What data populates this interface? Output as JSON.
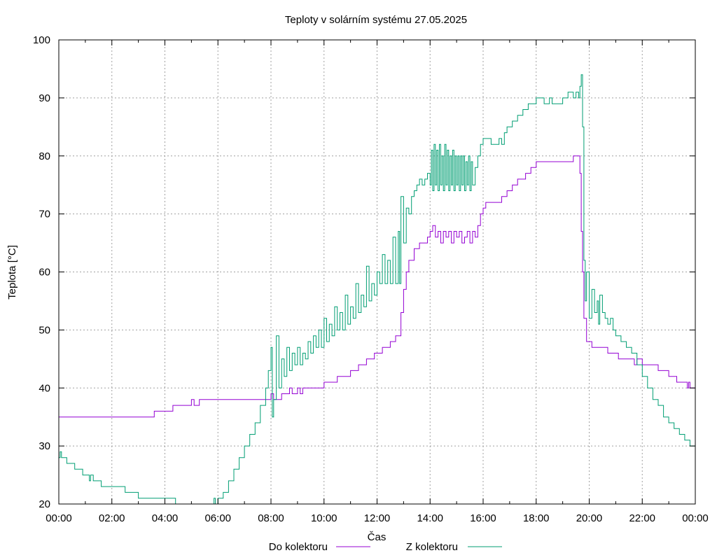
{
  "chart_data": {
    "type": "line",
    "title": "Teploty v solárním systému 27.05.2025",
    "xlabel": "Čas",
    "ylabel": "Teplota [°C]",
    "x_ticks": [
      "00:00",
      "02:00",
      "04:00",
      "06:00",
      "08:00",
      "10:00",
      "12:00",
      "14:00",
      "16:00",
      "18:00",
      "20:00",
      "22:00",
      "00:00"
    ],
    "y_ticks": [
      20,
      30,
      40,
      50,
      60,
      70,
      80,
      90,
      100
    ],
    "xlim_hours": [
      0,
      24
    ],
    "ylim": [
      20,
      100
    ],
    "grid": true,
    "legend_placement": "bottom",
    "series": [
      {
        "name": "Do kolektoru",
        "color": "#9400d3",
        "points": [
          [
            0.0,
            35
          ],
          [
            3.6,
            35
          ],
          [
            3.6,
            36
          ],
          [
            4.3,
            36
          ],
          [
            4.3,
            37
          ],
          [
            5.0,
            37
          ],
          [
            5.0,
            38
          ],
          [
            5.1,
            37
          ],
          [
            5.3,
            37
          ],
          [
            5.3,
            38
          ],
          [
            6.5,
            38
          ],
          [
            7.9,
            38
          ],
          [
            8.0,
            39
          ],
          [
            8.1,
            38
          ],
          [
            8.3,
            38
          ],
          [
            8.4,
            39
          ],
          [
            8.6,
            39
          ],
          [
            8.7,
            40
          ],
          [
            8.8,
            39
          ],
          [
            9.0,
            40
          ],
          [
            9.1,
            39
          ],
          [
            9.2,
            40
          ],
          [
            10.0,
            40
          ],
          [
            10.0,
            41
          ],
          [
            10.5,
            41
          ],
          [
            10.5,
            42
          ],
          [
            11.0,
            42
          ],
          [
            11.0,
            43
          ],
          [
            11.3,
            43
          ],
          [
            11.3,
            44
          ],
          [
            11.6,
            44
          ],
          [
            11.6,
            45
          ],
          [
            11.9,
            45
          ],
          [
            11.9,
            46
          ],
          [
            12.2,
            46
          ],
          [
            12.2,
            47
          ],
          [
            12.5,
            47
          ],
          [
            12.5,
            48
          ],
          [
            12.7,
            48
          ],
          [
            12.7,
            49
          ],
          [
            12.9,
            49
          ],
          [
            12.9,
            53
          ],
          [
            13.0,
            57
          ],
          [
            13.1,
            60
          ],
          [
            13.2,
            62
          ],
          [
            13.4,
            64
          ],
          [
            13.6,
            65
          ],
          [
            13.9,
            66
          ],
          [
            14.0,
            67
          ],
          [
            14.1,
            68
          ],
          [
            14.2,
            66
          ],
          [
            14.3,
            67
          ],
          [
            14.4,
            65
          ],
          [
            14.5,
            67
          ],
          [
            14.6,
            66
          ],
          [
            14.7,
            67
          ],
          [
            14.8,
            65
          ],
          [
            14.9,
            67
          ],
          [
            15.0,
            66
          ],
          [
            15.1,
            67
          ],
          [
            15.2,
            65
          ],
          [
            15.3,
            66
          ],
          [
            15.4,
            67
          ],
          [
            15.5,
            65
          ],
          [
            15.6,
            67
          ],
          [
            15.7,
            66
          ],
          [
            15.8,
            68
          ],
          [
            15.9,
            70
          ],
          [
            16.0,
            71
          ],
          [
            16.1,
            72
          ],
          [
            16.6,
            72
          ],
          [
            16.7,
            73
          ],
          [
            16.9,
            74
          ],
          [
            17.1,
            75
          ],
          [
            17.3,
            76
          ],
          [
            17.6,
            77
          ],
          [
            17.8,
            78
          ],
          [
            18.0,
            79
          ],
          [
            19.3,
            79
          ],
          [
            19.4,
            80
          ],
          [
            19.6,
            80
          ],
          [
            19.65,
            77
          ],
          [
            19.7,
            67
          ],
          [
            19.75,
            60
          ],
          [
            19.8,
            52
          ],
          [
            19.9,
            48
          ],
          [
            20.0,
            48
          ],
          [
            20.1,
            47
          ],
          [
            20.7,
            47
          ],
          [
            20.7,
            46
          ],
          [
            21.1,
            46
          ],
          [
            21.1,
            45
          ],
          [
            21.6,
            45
          ],
          [
            21.7,
            44
          ],
          [
            21.8,
            45
          ],
          [
            22.0,
            45
          ],
          [
            22.0,
            44
          ],
          [
            22.6,
            44
          ],
          [
            22.6,
            43
          ],
          [
            23.0,
            43
          ],
          [
            23.0,
            42
          ],
          [
            23.3,
            42
          ],
          [
            23.3,
            41
          ],
          [
            23.6,
            41
          ],
          [
            23.7,
            40
          ],
          [
            23.75,
            41
          ],
          [
            23.8,
            40
          ],
          [
            24.0,
            40
          ]
        ]
      },
      {
        "name": "Z kolektoru",
        "color": "#009e73",
        "points": [
          [
            0.0,
            28
          ],
          [
            0.05,
            29
          ],
          [
            0.1,
            28
          ],
          [
            0.3,
            28
          ],
          [
            0.3,
            27
          ],
          [
            0.6,
            27
          ],
          [
            0.6,
            26
          ],
          [
            0.9,
            26
          ],
          [
            0.9,
            25
          ],
          [
            1.1,
            25
          ],
          [
            1.15,
            24
          ],
          [
            1.2,
            25
          ],
          [
            1.3,
            24
          ],
          [
            1.6,
            24
          ],
          [
            1.6,
            23
          ],
          [
            2.5,
            23
          ],
          [
            2.5,
            22
          ],
          [
            3.0,
            22
          ],
          [
            3.0,
            21
          ],
          [
            3.9,
            21
          ],
          [
            4.0,
            21
          ],
          [
            4.4,
            21
          ],
          [
            4.4,
            20
          ],
          [
            5.5,
            20
          ],
          [
            5.8,
            20
          ],
          [
            5.85,
            21
          ],
          [
            5.9,
            20
          ],
          [
            6.0,
            21
          ],
          [
            6.2,
            22
          ],
          [
            6.4,
            24
          ],
          [
            6.6,
            26
          ],
          [
            6.8,
            28
          ],
          [
            7.0,
            30
          ],
          [
            7.2,
            32
          ],
          [
            7.4,
            34
          ],
          [
            7.6,
            37
          ],
          [
            7.8,
            40
          ],
          [
            7.9,
            43
          ],
          [
            8.0,
            47
          ],
          [
            8.05,
            35
          ],
          [
            8.1,
            38
          ],
          [
            8.2,
            49
          ],
          [
            8.3,
            40
          ],
          [
            8.4,
            45
          ],
          [
            8.5,
            42
          ],
          [
            8.6,
            47
          ],
          [
            8.7,
            43
          ],
          [
            8.8,
            46
          ],
          [
            8.9,
            44
          ],
          [
            9.0,
            47
          ],
          [
            9.1,
            44
          ],
          [
            9.2,
            46
          ],
          [
            9.3,
            45
          ],
          [
            9.4,
            48
          ],
          [
            9.5,
            46
          ],
          [
            9.6,
            49
          ],
          [
            9.7,
            47
          ],
          [
            9.8,
            50
          ],
          [
            9.9,
            47
          ],
          [
            10.0,
            52
          ],
          [
            10.1,
            48
          ],
          [
            10.2,
            51
          ],
          [
            10.3,
            49
          ],
          [
            10.4,
            54
          ],
          [
            10.5,
            50
          ],
          [
            10.6,
            53
          ],
          [
            10.7,
            50
          ],
          [
            10.8,
            56
          ],
          [
            10.9,
            51
          ],
          [
            11.0,
            54
          ],
          [
            11.1,
            52
          ],
          [
            11.2,
            58
          ],
          [
            11.3,
            53
          ],
          [
            11.4,
            56
          ],
          [
            11.5,
            54
          ],
          [
            11.6,
            61
          ],
          [
            11.7,
            55
          ],
          [
            11.8,
            58
          ],
          [
            11.9,
            56
          ],
          [
            12.0,
            60
          ],
          [
            12.1,
            58
          ],
          [
            12.2,
            63
          ],
          [
            12.3,
            58
          ],
          [
            12.4,
            62
          ],
          [
            12.5,
            58
          ],
          [
            12.6,
            66
          ],
          [
            12.7,
            58
          ],
          [
            12.8,
            67
          ],
          [
            12.85,
            58
          ],
          [
            12.9,
            73
          ],
          [
            13.0,
            65
          ],
          [
            13.1,
            71
          ],
          [
            13.2,
            70
          ],
          [
            13.3,
            73
          ],
          [
            13.4,
            74
          ],
          [
            13.5,
            75
          ],
          [
            13.6,
            76
          ],
          [
            13.7,
            75
          ],
          [
            13.8,
            76
          ],
          [
            13.9,
            77
          ],
          [
            14.0,
            75
          ],
          [
            14.05,
            81
          ],
          [
            14.1,
            74
          ],
          [
            14.15,
            82
          ],
          [
            14.2,
            75
          ],
          [
            14.25,
            81
          ],
          [
            14.3,
            74
          ],
          [
            14.35,
            82
          ],
          [
            14.4,
            75
          ],
          [
            14.45,
            80
          ],
          [
            14.5,
            74
          ],
          [
            14.55,
            82
          ],
          [
            14.6,
            75
          ],
          [
            14.65,
            81
          ],
          [
            14.7,
            74
          ],
          [
            14.75,
            80
          ],
          [
            14.8,
            75
          ],
          [
            14.85,
            81
          ],
          [
            14.9,
            74
          ],
          [
            14.95,
            80
          ],
          [
            15.0,
            75
          ],
          [
            15.05,
            80
          ],
          [
            15.1,
            74
          ],
          [
            15.15,
            80
          ],
          [
            15.2,
            75
          ],
          [
            15.25,
            80
          ],
          [
            15.3,
            74
          ],
          [
            15.35,
            79
          ],
          [
            15.4,
            75
          ],
          [
            15.45,
            80
          ],
          [
            15.5,
            74
          ],
          [
            15.55,
            79
          ],
          [
            15.6,
            75
          ],
          [
            15.7,
            78
          ],
          [
            15.8,
            80
          ],
          [
            15.9,
            82
          ],
          [
            16.0,
            83
          ],
          [
            16.3,
            83
          ],
          [
            16.3,
            82
          ],
          [
            16.5,
            82
          ],
          [
            16.6,
            83
          ],
          [
            16.7,
            82
          ],
          [
            16.8,
            84
          ],
          [
            16.9,
            85
          ],
          [
            17.1,
            86
          ],
          [
            17.3,
            87
          ],
          [
            17.5,
            88
          ],
          [
            17.7,
            89
          ],
          [
            17.9,
            89
          ],
          [
            18.0,
            90
          ],
          [
            18.3,
            89
          ],
          [
            18.5,
            90
          ],
          [
            18.6,
            89
          ],
          [
            19.0,
            90
          ],
          [
            19.2,
            91
          ],
          [
            19.4,
            90
          ],
          [
            19.5,
            91
          ],
          [
            19.6,
            90
          ],
          [
            19.65,
            92
          ],
          [
            19.7,
            94
          ],
          [
            19.75,
            85
          ],
          [
            19.8,
            62
          ],
          [
            19.85,
            55
          ],
          [
            19.9,
            60
          ],
          [
            20.0,
            52
          ],
          [
            20.1,
            57
          ],
          [
            20.2,
            53
          ],
          [
            20.3,
            55
          ],
          [
            20.35,
            51
          ],
          [
            20.4,
            56
          ],
          [
            20.5,
            53
          ],
          [
            20.6,
            52
          ],
          [
            20.7,
            51
          ],
          [
            20.8,
            52
          ],
          [
            20.9,
            50
          ],
          [
            21.0,
            49
          ],
          [
            21.2,
            48
          ],
          [
            21.4,
            47
          ],
          [
            21.6,
            46
          ],
          [
            21.8,
            44
          ],
          [
            22.0,
            42
          ],
          [
            22.2,
            40
          ],
          [
            22.4,
            38
          ],
          [
            22.6,
            37
          ],
          [
            22.8,
            35
          ],
          [
            23.0,
            34
          ],
          [
            23.2,
            33
          ],
          [
            23.4,
            32
          ],
          [
            23.6,
            31
          ],
          [
            23.8,
            30
          ],
          [
            24.0,
            30
          ]
        ]
      }
    ]
  }
}
